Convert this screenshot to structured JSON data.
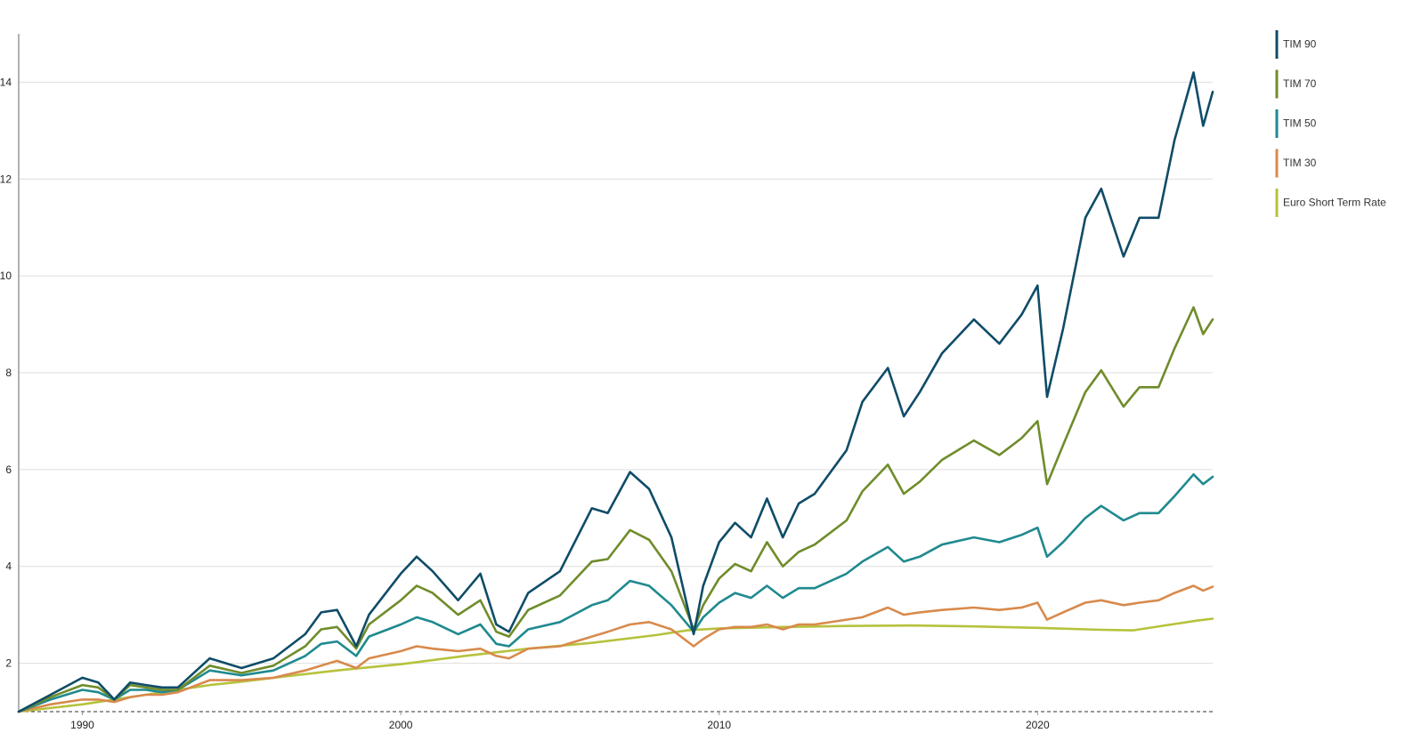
{
  "chart_data": {
    "type": "line",
    "title": "",
    "xlabel": "",
    "ylabel": "",
    "xlim": [
      1988,
      2025.5
    ],
    "ylim": [
      1,
      15
    ],
    "x_ticks": [
      1990,
      2000,
      2010,
      2020
    ],
    "x_tick_labels": [
      "1990",
      "2000",
      "2010",
      "2020"
    ],
    "y_ticks": [
      2,
      4,
      6,
      8,
      10,
      12,
      14
    ],
    "y_tick_labels": [
      "2",
      "4",
      "6",
      "8",
      "10",
      "12",
      "14"
    ],
    "grid": "horizontal",
    "baseline": 1,
    "legend_position": "top-right",
    "series": [
      {
        "name": "TIM 90",
        "color": "#0f4c68",
        "points": [
          [
            1988,
            1.0
          ],
          [
            1989,
            1.35
          ],
          [
            1990,
            1.7
          ],
          [
            1990.5,
            1.6
          ],
          [
            1991,
            1.25
          ],
          [
            1991.5,
            1.6
          ],
          [
            1992,
            1.55
          ],
          [
            1992.5,
            1.5
          ],
          [
            1993,
            1.5
          ],
          [
            1994,
            2.1
          ],
          [
            1995,
            1.9
          ],
          [
            1996,
            2.1
          ],
          [
            1997,
            2.6
          ],
          [
            1997.5,
            3.05
          ],
          [
            1998,
            3.1
          ],
          [
            1998.6,
            2.35
          ],
          [
            1999,
            3.0
          ],
          [
            2000,
            3.85
          ],
          [
            2000.5,
            4.2
          ],
          [
            2001,
            3.9
          ],
          [
            2001.8,
            3.3
          ],
          [
            2002.5,
            3.85
          ],
          [
            2003,
            2.8
          ],
          [
            2003.4,
            2.65
          ],
          [
            2004,
            3.45
          ],
          [
            2005,
            3.9
          ],
          [
            2006,
            5.2
          ],
          [
            2006.5,
            5.1
          ],
          [
            2007.2,
            5.95
          ],
          [
            2007.8,
            5.6
          ],
          [
            2008.5,
            4.6
          ],
          [
            2009.2,
            2.6
          ],
          [
            2009.5,
            3.6
          ],
          [
            2010,
            4.5
          ],
          [
            2010.5,
            4.9
          ],
          [
            2011,
            4.6
          ],
          [
            2011.5,
            5.4
          ],
          [
            2012,
            4.6
          ],
          [
            2012.5,
            5.3
          ],
          [
            2013,
            5.5
          ],
          [
            2014,
            6.4
          ],
          [
            2014.5,
            7.4
          ],
          [
            2015.3,
            8.1
          ],
          [
            2015.8,
            7.1
          ],
          [
            2016.3,
            7.6
          ],
          [
            2017,
            8.4
          ],
          [
            2018,
            9.1
          ],
          [
            2018.8,
            8.6
          ],
          [
            2019.5,
            9.2
          ],
          [
            2020,
            9.8
          ],
          [
            2020.3,
            7.5
          ],
          [
            2020.8,
            8.9
          ],
          [
            2021.5,
            11.2
          ],
          [
            2022,
            11.8
          ],
          [
            2022.7,
            10.4
          ],
          [
            2023.2,
            11.2
          ],
          [
            2023.8,
            11.2
          ],
          [
            2024.3,
            12.8
          ],
          [
            2024.9,
            14.2
          ],
          [
            2025.2,
            13.1
          ],
          [
            2025.5,
            13.8
          ]
        ]
      },
      {
        "name": "TIM 70",
        "color": "#6f8c2a",
        "points": [
          [
            1988,
            1.0
          ],
          [
            1989,
            1.3
          ],
          [
            1990,
            1.55
          ],
          [
            1990.5,
            1.5
          ],
          [
            1991,
            1.25
          ],
          [
            1991.5,
            1.55
          ],
          [
            1992,
            1.5
          ],
          [
            1992.5,
            1.45
          ],
          [
            1993,
            1.45
          ],
          [
            1994,
            1.95
          ],
          [
            1995,
            1.8
          ],
          [
            1996,
            1.95
          ],
          [
            1997,
            2.35
          ],
          [
            1997.5,
            2.7
          ],
          [
            1998,
            2.75
          ],
          [
            1998.6,
            2.3
          ],
          [
            1999,
            2.8
          ],
          [
            2000,
            3.3
          ],
          [
            2000.5,
            3.6
          ],
          [
            2001,
            3.45
          ],
          [
            2001.8,
            3.0
          ],
          [
            2002.5,
            3.3
          ],
          [
            2003,
            2.65
          ],
          [
            2003.4,
            2.55
          ],
          [
            2004,
            3.1
          ],
          [
            2005,
            3.4
          ],
          [
            2006,
            4.1
          ],
          [
            2006.5,
            4.15
          ],
          [
            2007.2,
            4.75
          ],
          [
            2007.8,
            4.55
          ],
          [
            2008.5,
            3.9
          ],
          [
            2009.2,
            2.7
          ],
          [
            2009.5,
            3.2
          ],
          [
            2010,
            3.75
          ],
          [
            2010.5,
            4.05
          ],
          [
            2011,
            3.9
          ],
          [
            2011.5,
            4.5
          ],
          [
            2012,
            4.0
          ],
          [
            2012.5,
            4.3
          ],
          [
            2013,
            4.45
          ],
          [
            2014,
            4.95
          ],
          [
            2014.5,
            5.55
          ],
          [
            2015.3,
            6.1
          ],
          [
            2015.8,
            5.5
          ],
          [
            2016.3,
            5.75
          ],
          [
            2017,
            6.2
          ],
          [
            2018,
            6.6
          ],
          [
            2018.8,
            6.3
          ],
          [
            2019.5,
            6.65
          ],
          [
            2020,
            7.0
          ],
          [
            2020.3,
            5.7
          ],
          [
            2020.8,
            6.5
          ],
          [
            2021.5,
            7.6
          ],
          [
            2022,
            8.05
          ],
          [
            2022.7,
            7.3
          ],
          [
            2023.2,
            7.7
          ],
          [
            2023.8,
            7.7
          ],
          [
            2024.3,
            8.5
          ],
          [
            2024.9,
            9.35
          ],
          [
            2025.2,
            8.8
          ],
          [
            2025.5,
            9.1
          ]
        ]
      },
      {
        "name": "TIM 50",
        "color": "#1f8a8f",
        "points": [
          [
            1988,
            1.0
          ],
          [
            1989,
            1.25
          ],
          [
            1990,
            1.45
          ],
          [
            1990.5,
            1.4
          ],
          [
            1991,
            1.25
          ],
          [
            1991.5,
            1.45
          ],
          [
            1992,
            1.45
          ],
          [
            1992.5,
            1.4
          ],
          [
            1993,
            1.45
          ],
          [
            1994,
            1.85
          ],
          [
            1995,
            1.75
          ],
          [
            1996,
            1.85
          ],
          [
            1997,
            2.15
          ],
          [
            1997.5,
            2.4
          ],
          [
            1998,
            2.45
          ],
          [
            1998.6,
            2.15
          ],
          [
            1999,
            2.55
          ],
          [
            2000,
            2.8
          ],
          [
            2000.5,
            2.95
          ],
          [
            2001,
            2.85
          ],
          [
            2001.8,
            2.6
          ],
          [
            2002.5,
            2.8
          ],
          [
            2003,
            2.4
          ],
          [
            2003.4,
            2.35
          ],
          [
            2004,
            2.7
          ],
          [
            2005,
            2.85
          ],
          [
            2006,
            3.2
          ],
          [
            2006.5,
            3.3
          ],
          [
            2007.2,
            3.7
          ],
          [
            2007.8,
            3.6
          ],
          [
            2008.5,
            3.2
          ],
          [
            2009.2,
            2.65
          ],
          [
            2009.5,
            2.95
          ],
          [
            2010,
            3.25
          ],
          [
            2010.5,
            3.45
          ],
          [
            2011,
            3.35
          ],
          [
            2011.5,
            3.6
          ],
          [
            2012,
            3.35
          ],
          [
            2012.5,
            3.55
          ],
          [
            2013,
            3.55
          ],
          [
            2014,
            3.85
          ],
          [
            2014.5,
            4.1
          ],
          [
            2015.3,
            4.4
          ],
          [
            2015.8,
            4.1
          ],
          [
            2016.3,
            4.2
          ],
          [
            2017,
            4.45
          ],
          [
            2018,
            4.6
          ],
          [
            2018.8,
            4.5
          ],
          [
            2019.5,
            4.65
          ],
          [
            2020,
            4.8
          ],
          [
            2020.3,
            4.2
          ],
          [
            2020.8,
            4.5
          ],
          [
            2021.5,
            5.0
          ],
          [
            2022,
            5.25
          ],
          [
            2022.7,
            4.95
          ],
          [
            2023.2,
            5.1
          ],
          [
            2023.8,
            5.1
          ],
          [
            2024.3,
            5.45
          ],
          [
            2024.9,
            5.9
          ],
          [
            2025.2,
            5.7
          ],
          [
            2025.5,
            5.85
          ]
        ]
      },
      {
        "name": "TIM 30",
        "color": "#d88a4c",
        "points": [
          [
            1988,
            1.0
          ],
          [
            1989,
            1.15
          ],
          [
            1990,
            1.25
          ],
          [
            1990.5,
            1.25
          ],
          [
            1991,
            1.2
          ],
          [
            1991.5,
            1.3
          ],
          [
            1992,
            1.35
          ],
          [
            1992.5,
            1.35
          ],
          [
            1993,
            1.4
          ],
          [
            1994,
            1.65
          ],
          [
            1995,
            1.65
          ],
          [
            1996,
            1.7
          ],
          [
            1997,
            1.85
          ],
          [
            1997.5,
            1.95
          ],
          [
            1998,
            2.05
          ],
          [
            1998.6,
            1.9
          ],
          [
            1999,
            2.1
          ],
          [
            2000,
            2.25
          ],
          [
            2000.5,
            2.35
          ],
          [
            2001,
            2.3
          ],
          [
            2001.8,
            2.25
          ],
          [
            2002.5,
            2.3
          ],
          [
            2003,
            2.15
          ],
          [
            2003.4,
            2.1
          ],
          [
            2004,
            2.3
          ],
          [
            2005,
            2.35
          ],
          [
            2006,
            2.55
          ],
          [
            2006.5,
            2.65
          ],
          [
            2007.2,
            2.8
          ],
          [
            2007.8,
            2.85
          ],
          [
            2008.5,
            2.7
          ],
          [
            2009.2,
            2.35
          ],
          [
            2009.5,
            2.5
          ],
          [
            2010,
            2.7
          ],
          [
            2010.5,
            2.75
          ],
          [
            2011,
            2.75
          ],
          [
            2011.5,
            2.8
          ],
          [
            2012,
            2.7
          ],
          [
            2012.5,
            2.8
          ],
          [
            2013,
            2.8
          ],
          [
            2014,
            2.9
          ],
          [
            2014.5,
            2.95
          ],
          [
            2015.3,
            3.15
          ],
          [
            2015.8,
            3.0
          ],
          [
            2016.3,
            3.05
          ],
          [
            2017,
            3.1
          ],
          [
            2018,
            3.15
          ],
          [
            2018.8,
            3.1
          ],
          [
            2019.5,
            3.15
          ],
          [
            2020,
            3.25
          ],
          [
            2020.3,
            2.9
          ],
          [
            2020.8,
            3.05
          ],
          [
            2021.5,
            3.25
          ],
          [
            2022,
            3.3
          ],
          [
            2022.7,
            3.2
          ],
          [
            2023.2,
            3.25
          ],
          [
            2023.8,
            3.3
          ],
          [
            2024.3,
            3.45
          ],
          [
            2024.9,
            3.6
          ],
          [
            2025.2,
            3.5
          ],
          [
            2025.5,
            3.58
          ]
        ]
      },
      {
        "name": "Euro Short Term Rate",
        "color": "#b7c23c",
        "points": [
          [
            1988,
            1.0
          ],
          [
            1990,
            1.15
          ],
          [
            1992,
            1.35
          ],
          [
            1993,
            1.45
          ],
          [
            1994,
            1.55
          ],
          [
            1995,
            1.62
          ],
          [
            1996,
            1.7
          ],
          [
            1998,
            1.85
          ],
          [
            2000,
            1.98
          ],
          [
            2002,
            2.15
          ],
          [
            2004,
            2.3
          ],
          [
            2006,
            2.42
          ],
          [
            2008,
            2.58
          ],
          [
            2009,
            2.68
          ],
          [
            2010,
            2.72
          ],
          [
            2012,
            2.75
          ],
          [
            2014,
            2.77
          ],
          [
            2016,
            2.78
          ],
          [
            2018,
            2.76
          ],
          [
            2020,
            2.73
          ],
          [
            2022,
            2.69
          ],
          [
            2023,
            2.68
          ],
          [
            2024,
            2.78
          ],
          [
            2025,
            2.88
          ],
          [
            2025.5,
            2.92
          ]
        ]
      }
    ]
  }
}
